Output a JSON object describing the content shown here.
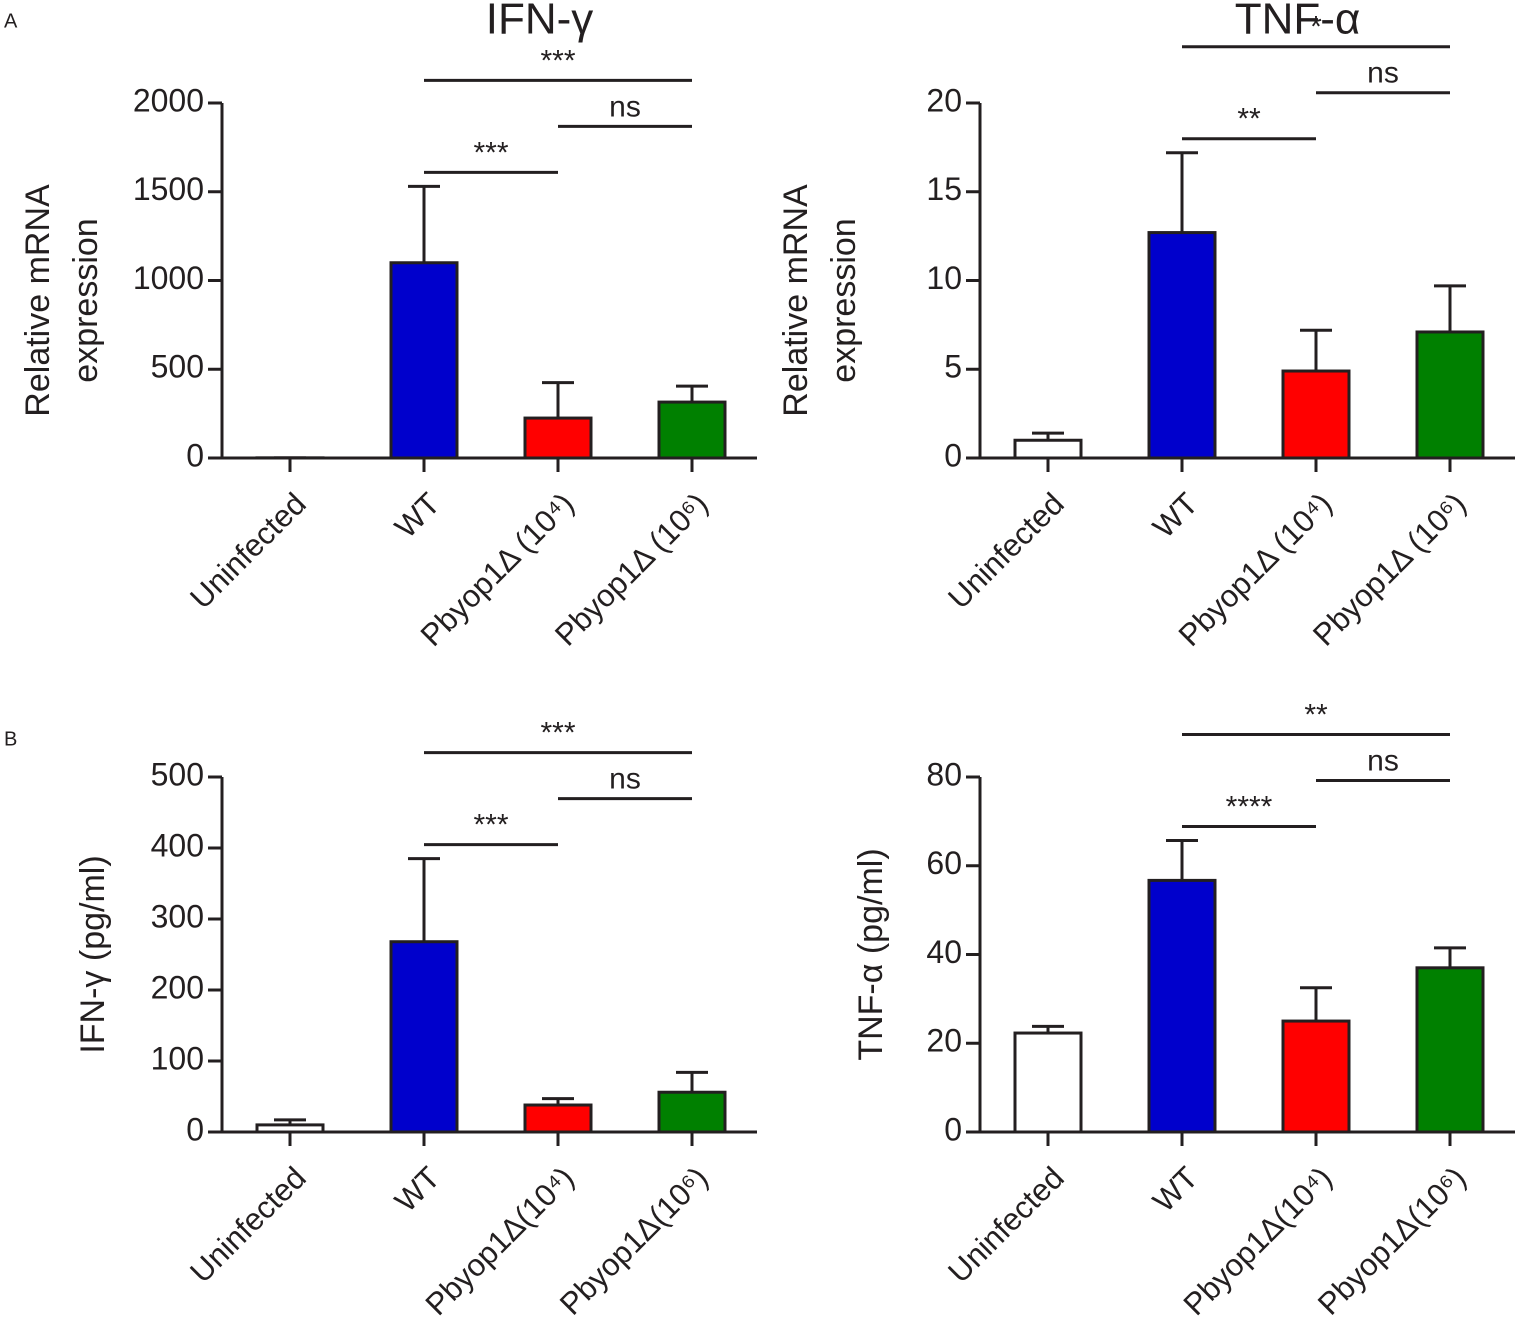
{
  "panel_labels": [
    "A",
    "B"
  ],
  "chart_data": [
    {
      "type": "bar",
      "title": "IFN-γ",
      "ylabel": [
        "Relative mRNA",
        "expression"
      ],
      "categories": [
        "Uninfected",
        "WT",
        "Pbyop1Δ (10⁴)",
        "Pbyop1Δ (10⁶)"
      ],
      "values": [
        1,
        1100,
        225,
        315
      ],
      "errors": [
        0,
        430,
        200,
        90
      ],
      "colors": [
        "#ffffff",
        "#0000cc",
        "#ff0000",
        "#008000"
      ],
      "ylim": [
        0,
        2000
      ],
      "yticks": [
        0,
        500,
        1000,
        1500,
        2000
      ],
      "annotations": [
        {
          "text": "***",
          "between": [
            1,
            2
          ]
        },
        {
          "text": "***",
          "between": [
            1,
            3
          ]
        },
        {
          "text": "ns",
          "between": [
            2,
            3
          ]
        }
      ]
    },
    {
      "type": "bar",
      "title": "TNF-α",
      "ylabel": [
        "Relative mRNA",
        "expression"
      ],
      "categories": [
        "Uninfected",
        "WT",
        "Pbyop1Δ (10⁴)",
        "Pbyop1Δ (10⁶)"
      ],
      "values": [
        1.0,
        12.7,
        4.9,
        7.1
      ],
      "errors": [
        0.4,
        4.5,
        2.3,
        2.6
      ],
      "colors": [
        "#ffffff",
        "#0000cc",
        "#ff0000",
        "#008000"
      ],
      "ylim": [
        0,
        20
      ],
      "yticks": [
        0,
        5,
        10,
        15,
        20
      ],
      "annotations": [
        {
          "text": "**",
          "between": [
            1,
            2
          ]
        },
        {
          "text": "*",
          "between": [
            1,
            3
          ]
        },
        {
          "text": "ns",
          "between": [
            2,
            3
          ]
        }
      ]
    },
    {
      "type": "bar",
      "ylabel": "IFN-γ (pg/ml)",
      "categories": [
        "Uninfected",
        "WT",
        "Pbyop1Δ(10⁴)",
        "Pbyop1Δ(10⁶)"
      ],
      "values": [
        10,
        268,
        38,
        56
      ],
      "errors": [
        7,
        117,
        9,
        28
      ],
      "colors": [
        "#ffffff",
        "#0000cc",
        "#ff0000",
        "#008000"
      ],
      "ylim": [
        0,
        500
      ],
      "yticks": [
        0,
        100,
        200,
        300,
        400,
        500
      ],
      "annotations": [
        {
          "text": "***",
          "between": [
            1,
            2
          ]
        },
        {
          "text": "***",
          "between": [
            1,
            3
          ]
        },
        {
          "text": "ns",
          "between": [
            2,
            3
          ]
        }
      ]
    },
    {
      "type": "bar",
      "ylabel": "TNF-α (pg/ml)",
      "categories": [
        "Uninfected",
        "WT",
        "Pbyop1Δ(10⁴)",
        "Pbyop1Δ(10⁶)"
      ],
      "values": [
        22.3,
        56.7,
        25,
        37
      ],
      "errors": [
        1.5,
        9,
        7.5,
        4.5
      ],
      "colors": [
        "#ffffff",
        "#0000cc",
        "#ff0000",
        "#008000"
      ],
      "ylim": [
        0,
        80
      ],
      "yticks": [
        0,
        20,
        40,
        60,
        80
      ],
      "annotations": [
        {
          "text": "****",
          "between": [
            1,
            2
          ]
        },
        {
          "text": "**",
          "between": [
            1,
            3
          ]
        },
        {
          "text": "ns",
          "between": [
            2,
            3
          ]
        }
      ]
    }
  ]
}
